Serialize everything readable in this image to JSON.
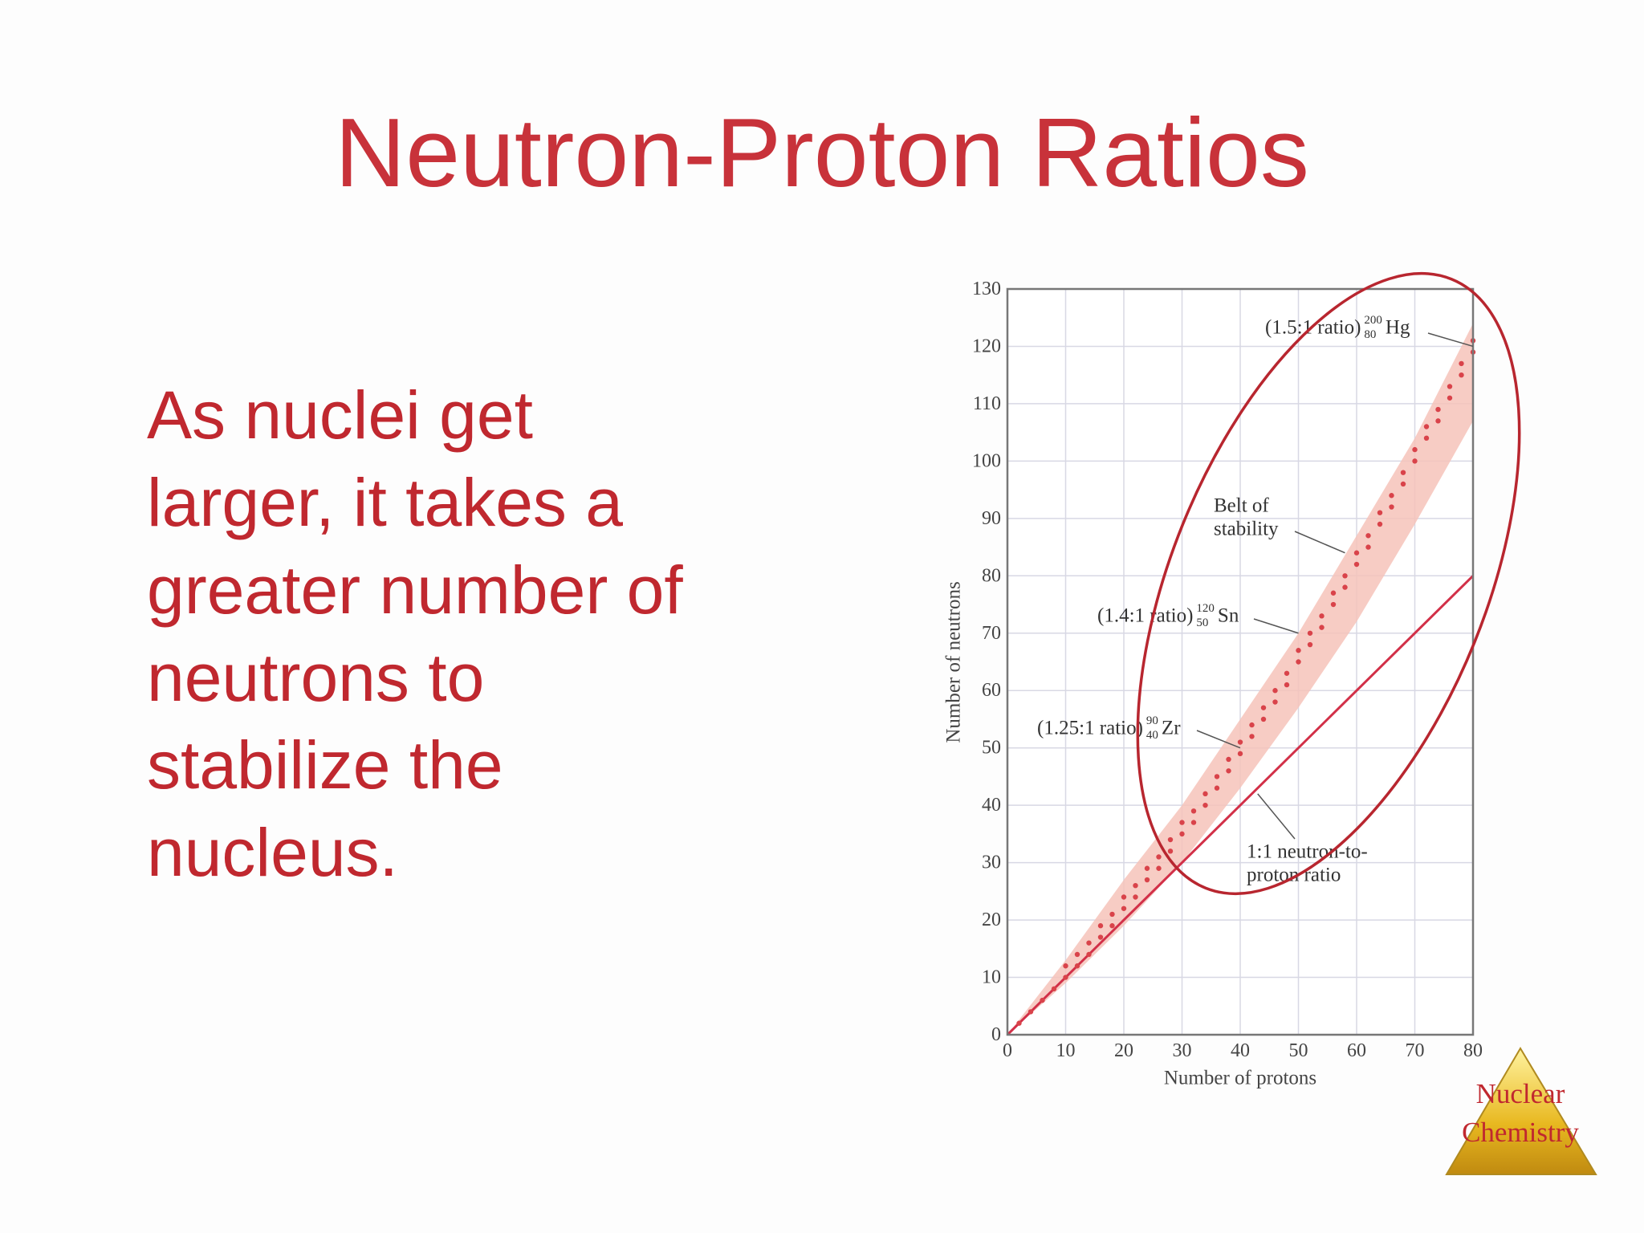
{
  "title": "Neutron-Proton Ratios",
  "body": {
    "lines": [
      "As nuclei get",
      "larger, it takes a",
      "greater number of",
      "neutrons to",
      "stabilize the",
      "nucleus."
    ]
  },
  "chart_data": {
    "type": "scatter",
    "xlabel": "Number of protons",
    "ylabel": "Number of neutrons",
    "xlim": [
      0,
      80
    ],
    "xticks": [
      0,
      10,
      20,
      30,
      40,
      50,
      60,
      70,
      80
    ],
    "ylim": [
      0,
      130
    ],
    "yticks": [
      0,
      10,
      20,
      30,
      40,
      50,
      60,
      70,
      80,
      90,
      100,
      110,
      120,
      130
    ],
    "grid": true,
    "stable_nuclides": {
      "color": "#d9434a",
      "x": [
        2,
        4,
        6,
        8,
        10,
        10,
        12,
        12,
        14,
        14,
        16,
        16,
        18,
        18,
        20,
        20,
        22,
        22,
        24,
        24,
        26,
        26,
        28,
        28,
        30,
        30,
        32,
        32,
        34,
        34,
        36,
        36,
        38,
        38,
        40,
        40,
        42,
        42,
        44,
        44,
        46,
        46,
        48,
        48,
        50,
        50,
        52,
        52,
        54,
        54,
        56,
        56,
        58,
        58,
        60,
        60,
        62,
        62,
        64,
        64,
        66,
        66,
        68,
        68,
        70,
        70,
        72,
        72,
        74,
        74,
        76,
        76,
        78,
        78,
        80,
        80
      ],
      "y": [
        2,
        4,
        6,
        8,
        10,
        12,
        12,
        14,
        14,
        16,
        17,
        19,
        19,
        21,
        22,
        24,
        24,
        26,
        27,
        29,
        29,
        31,
        32,
        34,
        35,
        37,
        37,
        39,
        40,
        42,
        43,
        45,
        46,
        48,
        49,
        51,
        52,
        54,
        55,
        57,
        58,
        60,
        61,
        63,
        65,
        67,
        68,
        70,
        71,
        73,
        75,
        77,
        78,
        80,
        82,
        84,
        85,
        87,
        89,
        91,
        92,
        94,
        96,
        98,
        100,
        102,
        104,
        106,
        107,
        109,
        111,
        113,
        115,
        117,
        119,
        121
      ]
    },
    "belt": {
      "color": "#f6c3ba",
      "x": [
        0,
        10,
        20,
        30,
        40,
        50,
        60,
        70,
        80
      ],
      "low": [
        0,
        9,
        19,
        30,
        43,
        57,
        72,
        89,
        107
      ],
      "high": [
        0,
        13,
        27,
        40,
        55,
        70,
        87,
        104,
        124
      ]
    },
    "ratio_line": {
      "color": "#d23048",
      "x": [
        0,
        80
      ],
      "y": [
        0,
        80
      ]
    },
    "annotations": [
      {
        "label": "(1.5:1 ratio)",
        "mass": "200",
        "number": "80",
        "symbol": "Hg",
        "point": [
          80,
          120
        ]
      },
      {
        "label": "(1.4:1 ratio)",
        "mass": "120",
        "number": "50",
        "symbol": "Sn",
        "point": [
          50,
          70
        ]
      },
      {
        "label": "(1.25:1 ratio)",
        "mass": "90",
        "number": "40",
        "symbol": "Zr",
        "point": [
          40,
          50
        ]
      },
      {
        "lines": [
          "Belt of",
          "stability"
        ],
        "point": [
          58,
          84
        ]
      },
      {
        "lines": [
          "1:1 neutron-to-",
          "proton ratio"
        ],
        "point": [
          43,
          42
        ]
      }
    ]
  },
  "logo": {
    "lines": [
      "Nuclear",
      "Chemistry"
    ]
  }
}
